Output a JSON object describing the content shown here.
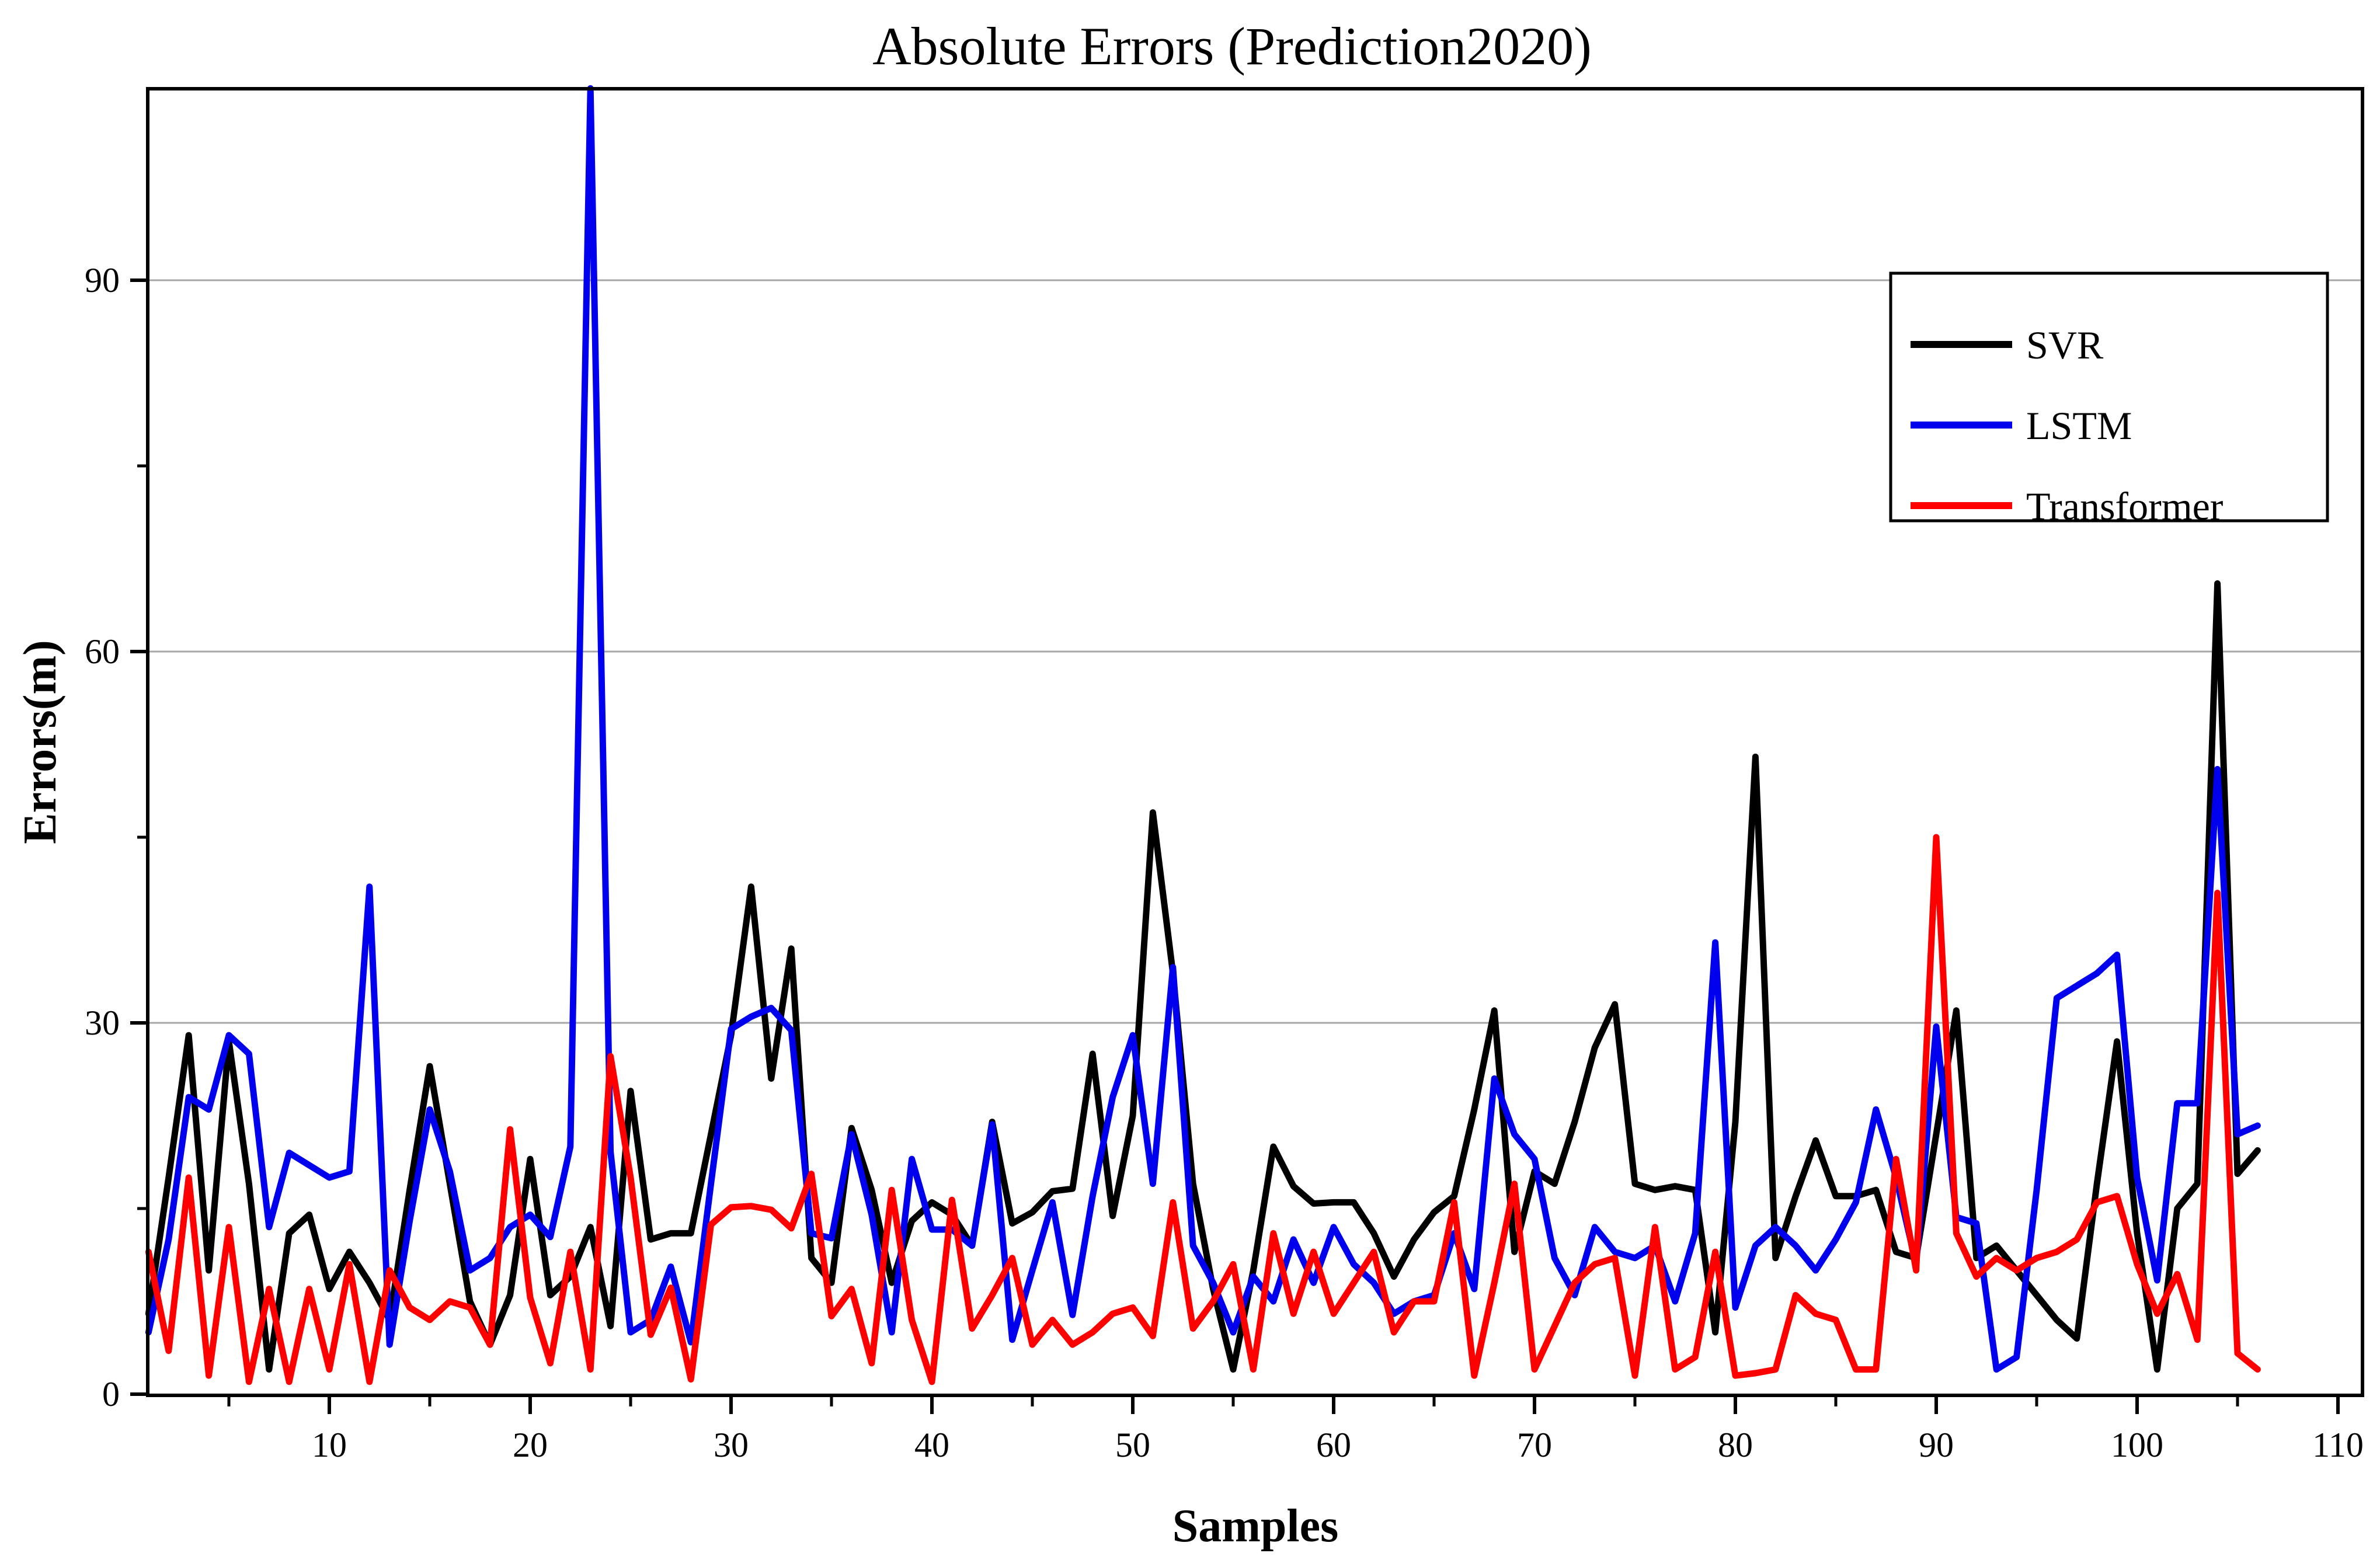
{
  "title": "Absolute Errors (Prediction2020)",
  "axes": {
    "xlabel": "Samples",
    "ylabel": "Errors(m)"
  },
  "legend": {
    "entries": [
      {
        "label": "SVR",
        "color": "#000000"
      },
      {
        "label": "LSTM",
        "color": "#0000ee"
      },
      {
        "label": "Transformer",
        "color": "#ff0000"
      }
    ],
    "position": "top-right"
  },
  "chart_data": {
    "type": "line",
    "title": "Absolute Errors (Prediction2020)",
    "xlabel": "Samples",
    "ylabel": "Errors(m)",
    "x_start": 1,
    "xlim": [
      0.5,
      111.5
    ],
    "ylim": [
      0,
      105.5
    ],
    "xticks_major": [
      10,
      20,
      30,
      40,
      50,
      60,
      70,
      80,
      90,
      100,
      110
    ],
    "xticks_minor": [
      5,
      15,
      25,
      35,
      45,
      55,
      65,
      75,
      85,
      95,
      105
    ],
    "yticks_major": [
      0,
      30,
      60,
      90
    ],
    "yticks_minor": [
      15,
      45,
      75
    ],
    "grid": "horizontal-at-major-yticks",
    "grid_color": "#a6a6a6",
    "series": [
      {
        "name": "SVR",
        "color": "#000000",
        "values": [
          6.5,
          17.5,
          29,
          10,
          28.5,
          17,
          2,
          13,
          14.5,
          8.5,
          11.5,
          9,
          6,
          16.5,
          26.5,
          17,
          7.5,
          4,
          8,
          19,
          8,
          9.5,
          13.5,
          5.5,
          24.5,
          12.5,
          13,
          13,
          21,
          29,
          41,
          25.5,
          36,
          11,
          9,
          21.5,
          16.5,
          9,
          14,
          15.5,
          14.5,
          12,
          22,
          13.8,
          14.7,
          16.4,
          16.6,
          27.5,
          14.4,
          22.5,
          47,
          34,
          17,
          8.5,
          2,
          10,
          20,
          16.8,
          15.4,
          15.5,
          15.5,
          13,
          9.5,
          12.5,
          14.7,
          16,
          23,
          31,
          11.5,
          18,
          17,
          22,
          28,
          31.5,
          17,
          16.5,
          16.8,
          16.5,
          5,
          22,
          51.5,
          11,
          16,
          20.5,
          16,
          16,
          16.5,
          11.5,
          11,
          21,
          31,
          11,
          12,
          10,
          8,
          6,
          4.5,
          17,
          28.5,
          13,
          2,
          15,
          17,
          65.5,
          17.8,
          19.7
        ]
      },
      {
        "name": "LSTM",
        "color": "#0000ee",
        "values": [
          5,
          12.5,
          24,
          23,
          29,
          27.5,
          13.5,
          19.5,
          18.5,
          17.5,
          18,
          41,
          4,
          14,
          23,
          18,
          10,
          11,
          13.5,
          14.5,
          12.7,
          20,
          105.5,
          19.6,
          5,
          6,
          10.3,
          4.2,
          17,
          29.5,
          30.5,
          31.2,
          29.4,
          13,
          12.6,
          21,
          14.5,
          5,
          19,
          13.3,
          13.3,
          12,
          21.8,
          4.4,
          10,
          15.5,
          6.4,
          16,
          24,
          29,
          17,
          34.5,
          12,
          9,
          5,
          9.5,
          7.5,
          12.5,
          9,
          13.5,
          10.5,
          9,
          6.5,
          7.5,
          8,
          13,
          8.5,
          25.5,
          21,
          19,
          11,
          8,
          13.5,
          11.5,
          11,
          12,
          7.5,
          13,
          36.5,
          7,
          12,
          13.5,
          12,
          10,
          12.5,
          15.5,
          23,
          17.5,
          10.5,
          29.7,
          14.3,
          13.8,
          2,
          3,
          16.5,
          32,
          33,
          34,
          35.5,
          17.5,
          9.2,
          23.5,
          23.5,
          50.5,
          21,
          21.7
        ]
      },
      {
        "name": "Transformer",
        "color": "#ff0000",
        "values": [
          11.5,
          3.5,
          17.5,
          1.5,
          13.5,
          1,
          8.5,
          1,
          8.5,
          2,
          10.5,
          1,
          10,
          7,
          6,
          7.5,
          7,
          4,
          21.4,
          7.8,
          2.5,
          11.5,
          2,
          27.3,
          17.5,
          4.8,
          8.6,
          1.2,
          13.7,
          15.1,
          15.2,
          14.9,
          13.4,
          17.8,
          6.3,
          8.5,
          2.5,
          16.5,
          6,
          1,
          15.7,
          5.3,
          8,
          11,
          4,
          6,
          4,
          5,
          6.5,
          7,
          4.7,
          15.5,
          5.3,
          7.5,
          10.5,
          2,
          13,
          6.5,
          11.5,
          6.5,
          9,
          11.5,
          5,
          7.5,
          7.5,
          15.5,
          1.5,
          9,
          17,
          2,
          5.5,
          9,
          10.5,
          11,
          1.5,
          13.5,
          2,
          3,
          11.5,
          1.5,
          1.7,
          2,
          8,
          6.5,
          6,
          2,
          2,
          19,
          10,
          45,
          13,
          9.5,
          11,
          10,
          11,
          11.5,
          12.5,
          15.5,
          16,
          10.5,
          6.5,
          9.7,
          4.4,
          40.5,
          3.3,
          2
        ]
      }
    ]
  }
}
